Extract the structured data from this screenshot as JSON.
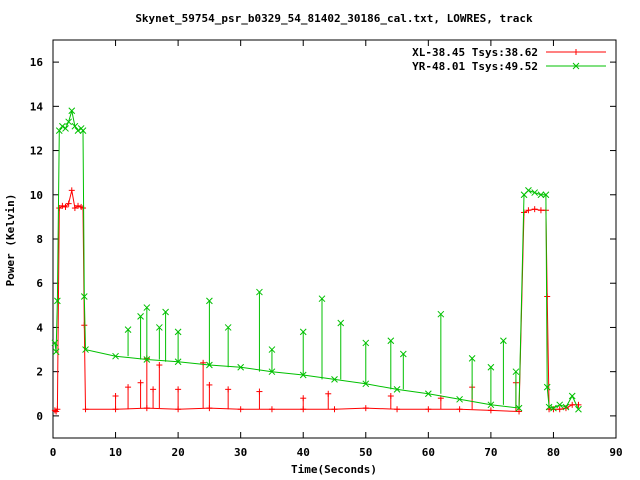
{
  "chart_data": {
    "type": "line",
    "title": "Skynet_59754_psr_b0329_54_81402_30186_cal.txt, LOWRES, track",
    "xlabel": "Time(Seconds)",
    "ylabel": "Power (Kelvin)",
    "xlim": [
      0,
      90
    ],
    "ylim": [
      -1,
      17
    ],
    "xticks": [
      0,
      10,
      20,
      30,
      40,
      50,
      60,
      70,
      80,
      90
    ],
    "yticks": [
      0,
      2,
      4,
      6,
      8,
      10,
      12,
      14,
      16
    ],
    "grid": false,
    "legend": "top-right",
    "series": [
      {
        "name": "XL-38.45 Tsys:38.62",
        "color": "#ff0000",
        "marker": "plus",
        "segments": [
          {
            "x": [
              0.3,
              75.0
            ],
            "y": [
              0.25,
              0.2
            ]
          }
        ],
        "steps": [
          {
            "from": [
              0.0,
              0.25
            ],
            "to": [
              0.8,
              9.4
            ],
            "until": 4.9,
            "level": 9.45
          },
          {
            "from": [
              4.9,
              9.4
            ],
            "to": [
              5.1,
              0.3
            ]
          },
          {
            "at": 75.3,
            "level": 9.3,
            "until": 79.0
          }
        ],
        "points": [
          {
            "x": 0.3,
            "y": 0.25
          },
          {
            "x": 0.5,
            "y": 0.2
          },
          {
            "x": 0.7,
            "y": 0.3
          },
          {
            "x": 1.0,
            "y": 9.4
          },
          {
            "x": 1.5,
            "y": 9.5
          },
          {
            "x": 2.0,
            "y": 9.45
          },
          {
            "x": 2.5,
            "y": 9.6
          },
          {
            "x": 3.0,
            "y": 10.2
          },
          {
            "x": 3.5,
            "y": 9.4
          },
          {
            "x": 4.0,
            "y": 9.5
          },
          {
            "x": 4.5,
            "y": 9.45
          },
          {
            "x": 4.8,
            "y": 9.4
          },
          {
            "x": 5.0,
            "y": 4.1
          },
          {
            "x": 5.2,
            "y": 0.3
          },
          {
            "x": 10,
            "y": 0.3
          },
          {
            "x": 15,
            "y": 0.35
          },
          {
            "x": 20,
            "y": 0.3
          },
          {
            "x": 25,
            "y": 0.35
          },
          {
            "x": 30,
            "y": 0.3
          },
          {
            "x": 35,
            "y": 0.3
          },
          {
            "x": 40,
            "y": 0.3
          },
          {
            "x": 45,
            "y": 0.3
          },
          {
            "x": 50,
            "y": 0.35
          },
          {
            "x": 55,
            "y": 0.3
          },
          {
            "x": 60,
            "y": 0.3
          },
          {
            "x": 65,
            "y": 0.3
          },
          {
            "x": 70,
            "y": 0.25
          },
          {
            "x": 74.5,
            "y": 0.2
          },
          {
            "x": 75.3,
            "y": 9.2
          },
          {
            "x": 76,
            "y": 9.3
          },
          {
            "x": 77,
            "y": 9.35
          },
          {
            "x": 78,
            "y": 9.3
          },
          {
            "x": 78.8,
            "y": 9.3
          },
          {
            "x": 79.0,
            "y": 5.4
          },
          {
            "x": 79.3,
            "y": 0.3
          },
          {
            "x": 80,
            "y": 0.3
          },
          {
            "x": 81,
            "y": 0.3
          },
          {
            "x": 82,
            "y": 0.35
          },
          {
            "x": 83,
            "y": 0.5
          },
          {
            "x": 84,
            "y": 0.5
          }
        ]
      },
      {
        "name": "YR-48.01 Tsys:49.52",
        "color": "#00c000",
        "marker": "cross",
        "points": [
          {
            "x": 0.3,
            "y": 3.3
          },
          {
            "x": 0.5,
            "y": 2.9
          },
          {
            "x": 0.7,
            "y": 5.2
          },
          {
            "x": 1.0,
            "y": 12.9
          },
          {
            "x": 1.5,
            "y": 13.1
          },
          {
            "x": 2.0,
            "y": 13.0
          },
          {
            "x": 2.5,
            "y": 13.3
          },
          {
            "x": 3.0,
            "y": 13.8
          },
          {
            "x": 3.5,
            "y": 13.1
          },
          {
            "x": 4.0,
            "y": 12.9
          },
          {
            "x": 4.5,
            "y": 13.0
          },
          {
            "x": 4.8,
            "y": 12.9
          },
          {
            "x": 5.0,
            "y": 5.4
          },
          {
            "x": 5.2,
            "y": 3.0
          },
          {
            "x": 10,
            "y": 2.7
          },
          {
            "x": 15,
            "y": 2.55
          },
          {
            "x": 20,
            "y": 2.45
          },
          {
            "x": 25,
            "y": 2.3
          },
          {
            "x": 30,
            "y": 2.2
          },
          {
            "x": 35,
            "y": 2.0
          },
          {
            "x": 40,
            "y": 1.85
          },
          {
            "x": 45,
            "y": 1.65
          },
          {
            "x": 50,
            "y": 1.45
          },
          {
            "x": 55,
            "y": 1.2
          },
          {
            "x": 60,
            "y": 1.0
          },
          {
            "x": 65,
            "y": 0.75
          },
          {
            "x": 70,
            "y": 0.5
          },
          {
            "x": 74.5,
            "y": 0.35
          },
          {
            "x": 75.3,
            "y": 10.0
          },
          {
            "x": 76,
            "y": 10.2
          },
          {
            "x": 77,
            "y": 10.1
          },
          {
            "x": 78,
            "y": 10.0
          },
          {
            "x": 78.8,
            "y": 10.0
          },
          {
            "x": 79.0,
            "y": 1.3
          },
          {
            "x": 79.3,
            "y": 0.4
          },
          {
            "x": 80,
            "y": 0.35
          },
          {
            "x": 81,
            "y": 0.5
          },
          {
            "x": 82,
            "y": 0.4
          },
          {
            "x": 83,
            "y": 0.9
          },
          {
            "x": 84,
            "y": 0.3
          }
        ]
      }
    ],
    "spikes": {
      "XL-38.45 Tsys:38.62": [
        {
          "x": 10,
          "y": 0.9
        },
        {
          "x": 12,
          "y": 1.3
        },
        {
          "x": 14,
          "y": 1.5
        },
        {
          "x": 15,
          "y": 2.6
        },
        {
          "x": 16,
          "y": 1.2
        },
        {
          "x": 17,
          "y": 2.3
        },
        {
          "x": 20,
          "y": 1.2
        },
        {
          "x": 24,
          "y": 2.4
        },
        {
          "x": 25,
          "y": 1.4
        },
        {
          "x": 28,
          "y": 1.2
        },
        {
          "x": 33,
          "y": 1.1
        },
        {
          "x": 40,
          "y": 0.8
        },
        {
          "x": 44,
          "y": 1.0
        },
        {
          "x": 54,
          "y": 0.9
        },
        {
          "x": 62,
          "y": 0.8
        },
        {
          "x": 67,
          "y": 1.3
        },
        {
          "x": 74,
          "y": 1.5
        }
      ],
      "YR-48.01 Tsys:49.52": [
        {
          "x": 12,
          "y": 3.9
        },
        {
          "x": 14,
          "y": 4.5
        },
        {
          "x": 15,
          "y": 4.9
        },
        {
          "x": 17,
          "y": 4.0
        },
        {
          "x": 18,
          "y": 4.7
        },
        {
          "x": 20,
          "y": 3.8
        },
        {
          "x": 25,
          "y": 5.2
        },
        {
          "x": 28,
          "y": 4.0
        },
        {
          "x": 33,
          "y": 5.6
        },
        {
          "x": 35,
          "y": 3.0
        },
        {
          "x": 40,
          "y": 3.8
        },
        {
          "x": 43,
          "y": 5.3
        },
        {
          "x": 46,
          "y": 4.2
        },
        {
          "x": 50,
          "y": 3.3
        },
        {
          "x": 54,
          "y": 3.4
        },
        {
          "x": 56,
          "y": 2.8
        },
        {
          "x": 62,
          "y": 4.6
        },
        {
          "x": 67,
          "y": 2.6
        },
        {
          "x": 70,
          "y": 2.2
        },
        {
          "x": 72,
          "y": 3.4
        },
        {
          "x": 74,
          "y": 2.0
        }
      ]
    }
  }
}
